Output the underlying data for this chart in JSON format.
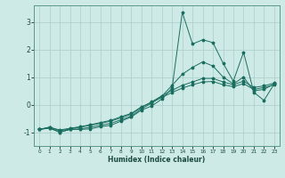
{
  "xlabel": "Humidex (Indice chaleur)",
  "bg_color": "#ceeae6",
  "grid_color": "#aaccc8",
  "line_color": "#1a6e60",
  "xlim": [
    -0.5,
    23.5
  ],
  "ylim": [
    -1.5,
    3.6
  ],
  "yticks": [
    -1,
    0,
    1,
    2,
    3
  ],
  "xticks": [
    0,
    1,
    2,
    3,
    4,
    5,
    6,
    7,
    8,
    9,
    10,
    11,
    12,
    13,
    14,
    15,
    16,
    17,
    18,
    19,
    20,
    21,
    22,
    23
  ],
  "series": [
    {
      "x": [
        0,
        1,
        2,
        3,
        4,
        5,
        6,
        7,
        8,
        9,
        10,
        11,
        12,
        13,
        14,
        15,
        16,
        17,
        18,
        19,
        20,
        21,
        22,
        23
      ],
      "y": [
        -0.9,
        -0.85,
        -1.0,
        -0.9,
        -0.9,
        -0.88,
        -0.8,
        -0.75,
        -0.6,
        -0.45,
        -0.2,
        -0.05,
        0.2,
        0.6,
        3.35,
        2.2,
        2.35,
        2.25,
        1.5,
        0.85,
        1.9,
        0.45,
        0.15,
        0.75
      ]
    },
    {
      "x": [
        0,
        1,
        2,
        3,
        4,
        5,
        6,
        7,
        8,
        9,
        10,
        11,
        12,
        13,
        14,
        15,
        16,
        17,
        18,
        19,
        20,
        21,
        22,
        23
      ],
      "y": [
        -0.9,
        -0.85,
        -1.0,
        -0.9,
        -0.88,
        -0.82,
        -0.75,
        -0.68,
        -0.55,
        -0.42,
        -0.15,
        0.05,
        0.3,
        0.7,
        1.1,
        1.35,
        1.55,
        1.4,
        1.0,
        0.75,
        1.0,
        0.5,
        0.55,
        0.75
      ]
    },
    {
      "x": [
        0,
        1,
        2,
        3,
        4,
        5,
        6,
        7,
        8,
        9,
        10,
        11,
        12,
        13,
        14,
        15,
        16,
        17,
        18,
        19,
        20,
        21,
        22,
        23
      ],
      "y": [
        -0.9,
        -0.82,
        -0.95,
        -0.88,
        -0.82,
        -0.75,
        -0.68,
        -0.6,
        -0.48,
        -0.35,
        -0.1,
        0.1,
        0.32,
        0.52,
        0.7,
        0.82,
        0.95,
        0.95,
        0.82,
        0.72,
        0.85,
        0.62,
        0.68,
        0.78
      ]
    },
    {
      "x": [
        0,
        1,
        2,
        3,
        4,
        5,
        6,
        7,
        8,
        9,
        10,
        11,
        12,
        13,
        14,
        15,
        16,
        17,
        18,
        19,
        20,
        21,
        22,
        23
      ],
      "y": [
        -0.9,
        -0.82,
        -0.92,
        -0.86,
        -0.8,
        -0.73,
        -0.65,
        -0.57,
        -0.44,
        -0.32,
        -0.08,
        0.08,
        0.26,
        0.44,
        0.6,
        0.72,
        0.82,
        0.84,
        0.72,
        0.65,
        0.76,
        0.55,
        0.62,
        0.72
      ]
    }
  ]
}
